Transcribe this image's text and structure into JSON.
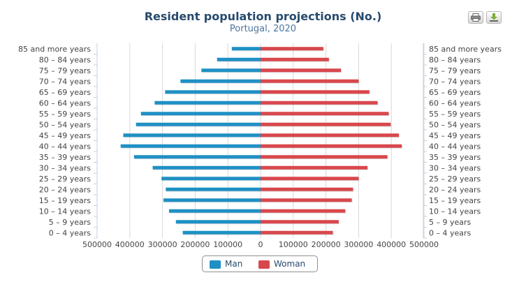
{
  "chart_data": {
    "type": "bar",
    "orientation": "horizontal-population-pyramid",
    "title": "Resident population projections (No.)",
    "subtitle": "Portugal, 2020",
    "categories": [
      "85 and more years",
      "80 – 84 years",
      "75 – 79 years",
      "70 – 74 years",
      "65 – 69 years",
      "60 – 64 years",
      "55 – 59 years",
      "50 – 54 years",
      "45 – 49 years",
      "40 – 44 years",
      "35 – 39 years",
      "30 – 34 years",
      "25 – 29 years",
      "20 – 24 years",
      "15 – 19 years",
      "10 – 14 years",
      "5 – 9 years",
      "0 – 4 years"
    ],
    "series": [
      {
        "name": "Man",
        "color": "#1f90c4",
        "values": [
          88000,
          133000,
          181000,
          245000,
          292000,
          324000,
          366000,
          381000,
          420000,
          428000,
          387000,
          330000,
          303000,
          290000,
          297000,
          280000,
          259000,
          238000
        ]
      },
      {
        "name": "Woman",
        "color": "#d8474c",
        "values": [
          192000,
          209000,
          246000,
          300000,
          333000,
          358000,
          392000,
          398000,
          423000,
          432000,
          388000,
          327000,
          300000,
          283000,
          279000,
          259000,
          239000,
          221000
        ]
      }
    ],
    "xlim": [
      -500000,
      500000
    ],
    "xticks": [
      "500000",
      "400000",
      "300000",
      "200000",
      "100000",
      "0",
      "100000",
      "200000",
      "300000",
      "400000",
      "500000"
    ],
    "xtick_values": [
      -500000,
      -400000,
      -300000,
      -200000,
      -100000,
      0,
      100000,
      200000,
      300000,
      400000,
      500000
    ],
    "grid": true,
    "legend_position": "bottom-center"
  },
  "toolbar": {
    "print_icon": "printer-icon",
    "download_icon": "download-icon"
  }
}
